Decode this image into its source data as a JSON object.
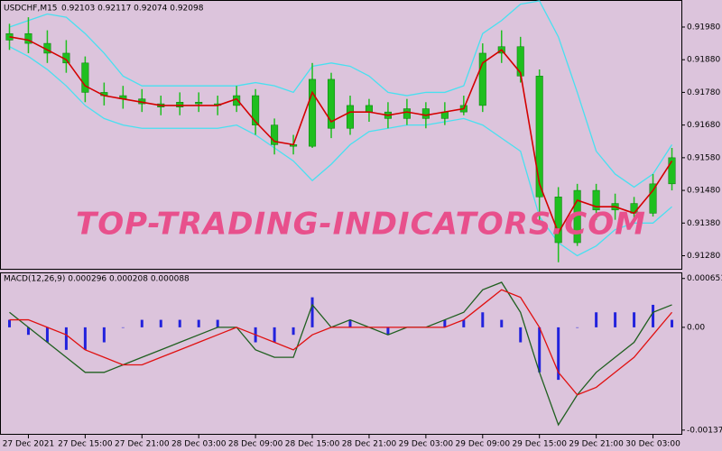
{
  "chart_data": [
    {
      "type": "candlestick",
      "title": "USDCHF,M15",
      "ohlc_text": "0.92103 0.92117 0.92074 0.92098",
      "watermark": "TOP-TRADING-INDICATORS.COM",
      "categories": [
        null,
        "27 Dec 2021",
        null,
        null,
        "27 Dec 15:00",
        null,
        null,
        "27 Dec 21:00",
        null,
        null,
        "28 Dec 03:00",
        null,
        null,
        "28 Dec 09:00",
        null,
        null,
        "28 Dec 15:00",
        null,
        null,
        "28 Dec 21:00",
        null,
        null,
        "29 Dec 03:00",
        null,
        null,
        "29 Dec 09:00",
        null,
        null,
        "29 Dec 15:00",
        null,
        null,
        "29 Dec 21:00",
        null,
        null,
        "30 Dec 03:00",
        null
      ],
      "open": [
        0.9194,
        0.9196,
        0.9193,
        0.919,
        0.9187,
        0.9178,
        0.9177,
        0.9176,
        0.91745,
        0.91735,
        0.9175,
        0.91745,
        0.9174,
        0.9177,
        0.9168,
        0.9162,
        0.91615,
        0.9182,
        0.9167,
        0.9174,
        0.9172,
        0.917,
        0.9173,
        0.917,
        0.9172,
        0.9174,
        0.919,
        0.9192,
        0.9183,
        0.9146,
        0.9132,
        0.9148,
        0.9142,
        0.9144,
        0.9141,
        0.915
      ],
      "high": [
        0.9199,
        0.9201,
        0.9197,
        0.9194,
        0.9189,
        0.9181,
        0.918,
        0.9179,
        0.9177,
        0.9178,
        0.9178,
        0.9177,
        0.918,
        0.9179,
        0.917,
        0.9165,
        0.9187,
        0.9184,
        0.9177,
        0.9176,
        0.9175,
        0.9176,
        0.9175,
        0.9175,
        0.9177,
        0.9193,
        0.9197,
        0.9195,
        0.9185,
        0.9149,
        0.915,
        0.915,
        0.9147,
        0.9146,
        0.9153,
        0.9161
      ],
      "low": [
        0.9191,
        0.919,
        0.9187,
        0.9184,
        0.9175,
        0.9174,
        0.9173,
        0.9172,
        0.9171,
        0.9171,
        0.9172,
        0.9171,
        0.9172,
        0.9165,
        0.9159,
        0.9159,
        0.9161,
        0.9164,
        0.9165,
        0.9169,
        0.9167,
        0.9168,
        0.9167,
        0.9168,
        0.9171,
        0.9172,
        0.9187,
        0.9181,
        0.9138,
        0.9126,
        0.9131,
        0.9139,
        0.9139,
        0.9138,
        0.914,
        0.9148
      ],
      "close": [
        0.9196,
        0.9193,
        0.919,
        0.9187,
        0.9178,
        0.9177,
        0.9176,
        0.91745,
        0.91735,
        0.9175,
        0.91745,
        0.9174,
        0.9177,
        0.9168,
        0.9162,
        0.91615,
        0.9182,
        0.9167,
        0.9174,
        0.9172,
        0.917,
        0.9173,
        0.917,
        0.9172,
        0.9174,
        0.919,
        0.9192,
        0.9183,
        0.9146,
        0.9132,
        0.9148,
        0.9142,
        0.9144,
        0.9141,
        0.915,
        0.9158
      ],
      "color": "#1fbf1f",
      "lines": [
        {
          "color": "#48e0f0",
          "values": [
            0.9198,
            0.92,
            0.9202,
            0.9201,
            0.9196,
            0.919,
            0.9183,
            0.918,
            0.918,
            0.918,
            0.918,
            0.918,
            0.918,
            0.9181,
            0.918,
            0.9178,
            0.9186,
            0.9187,
            0.9186,
            0.9183,
            0.9178,
            0.9177,
            0.9178,
            0.9178,
            0.918,
            0.9196,
            0.92,
            0.9205,
            0.9206,
            0.9195,
            0.9178,
            0.916,
            0.9153,
            0.9149,
            0.9153,
            0.9162
          ]
        },
        {
          "color": "#48e0f0",
          "values": [
            0.9192,
            0.9189,
            0.9185,
            0.918,
            0.9174,
            0.917,
            0.9168,
            0.9167,
            0.9167,
            0.9167,
            0.9167,
            0.9167,
            0.9168,
            0.9165,
            0.9161,
            0.9157,
            0.9151,
            0.9156,
            0.9162,
            0.9166,
            0.9167,
            0.9168,
            0.9168,
            0.9169,
            0.917,
            0.9168,
            0.9164,
            0.916,
            0.914,
            0.9132,
            0.9128,
            0.9131,
            0.9136,
            0.9138,
            0.9138,
            0.9143
          ]
        },
        {
          "color": "#d40000",
          "values": [
            0.9195,
            0.9194,
            0.9191,
            0.9188,
            0.918,
            0.9177,
            0.9176,
            0.9175,
            0.9174,
            0.9174,
            0.9174,
            0.9174,
            0.9176,
            0.9169,
            0.9163,
            0.9162,
            0.9178,
            0.9169,
            0.9172,
            0.9172,
            0.9171,
            0.9172,
            0.9171,
            0.9172,
            0.9173,
            0.9187,
            0.9191,
            0.9184,
            0.915,
            0.9135,
            0.9145,
            0.9143,
            0.9143,
            0.9141,
            0.9148,
            0.9157
          ]
        }
      ],
      "ylim": [
        0.9124,
        0.9206
      ],
      "yticks": [
        {
          "value": 0.9198,
          "label": "0.91980"
        },
        {
          "value": 0.9188,
          "label": "0.91880"
        },
        {
          "value": 0.9178,
          "label": "0.91780"
        },
        {
          "value": 0.9168,
          "label": "0.91680"
        },
        {
          "value": 0.9158,
          "label": "0.91580"
        },
        {
          "value": 0.9148,
          "label": "0.91480"
        },
        {
          "value": 0.9138,
          "label": "0.91380"
        },
        {
          "value": 0.9128,
          "label": "0.91280"
        }
      ]
    },
    {
      "type": "macd",
      "title": "MACD(12,26,9) 0.000296 0.000208 0.000088",
      "histogram": {
        "color": "#2222dd",
        "values": [
          0.0001,
          -0.0001,
          -0.0002,
          -0.0003,
          -0.0003,
          -0.0002,
          0,
          0.0001,
          0.0001,
          0.0001,
          0.0001,
          0.0001,
          0,
          -0.0002,
          -0.0002,
          -0.0001,
          0.0004,
          0,
          0.0001,
          0,
          -0.0001,
          0,
          0,
          0.0001,
          0.0001,
          0.0002,
          0.0001,
          -0.0002,
          -0.0006,
          -0.0007,
          0,
          0.0002,
          0.0002,
          0.0002,
          0.0003,
          0.0001
        ]
      },
      "lines": [
        {
          "color": "#1f5f1f",
          "values": [
            0.0002,
            0,
            -0.0002,
            -0.0004,
            -0.0006,
            -0.0006,
            -0.0005,
            -0.0004,
            -0.0003,
            -0.0002,
            -0.0001,
            0,
            0,
            -0.0003,
            -0.0004,
            -0.0004,
            0.0003,
            0,
            0.0001,
            0,
            -0.0001,
            0,
            0,
            0.0001,
            0.0002,
            0.0005,
            0.0006,
            0.0002,
            -0.0006,
            -0.0013,
            -0.0009,
            -0.0006,
            -0.0004,
            -0.0002,
            0.0002,
            0.0003
          ]
        },
        {
          "color": "#e01010",
          "values": [
            0.0001,
            0.0001,
            0,
            -0.0001,
            -0.0003,
            -0.0004,
            -0.0005,
            -0.0005,
            -0.0004,
            -0.0003,
            -0.0002,
            -0.0001,
            0,
            -0.0001,
            -0.0002,
            -0.0003,
            -0.0001,
            0,
            0,
            0,
            0,
            0,
            0,
            0,
            0.0001,
            0.0003,
            0.0005,
            0.0004,
            0,
            -0.0006,
            -0.0009,
            -0.0008,
            -0.0006,
            -0.0004,
            -0.0001,
            0.0002
          ]
        }
      ],
      "ylim": [
        -0.00142,
        0.00072
      ],
      "yticks": [
        0.000651,
        {
          "value": 0,
          "label": "0.00"
        },
        -0.00137
      ]
    }
  ]
}
